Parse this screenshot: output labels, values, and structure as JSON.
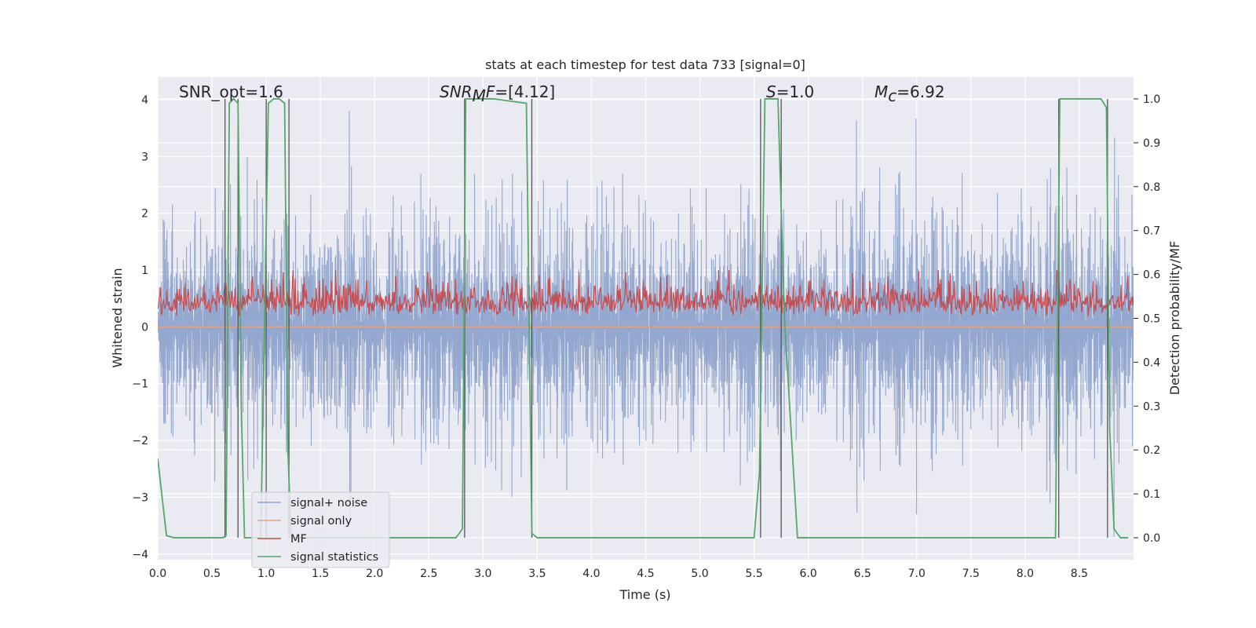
{
  "chart_data": {
    "type": "line",
    "title": "stats at each timestep for test data 733 [signal=0]",
    "xlabel": "Time (s)",
    "ylabel": "Whitened strain",
    "y2label": "Detection probability/MF",
    "xlim": [
      0,
      9
    ],
    "ylim": [
      -4.1,
      4.4
    ],
    "y2lim": [
      -0.05,
      1.05
    ],
    "xticks": [
      "0.0",
      "0.5",
      "1.0",
      "1.5",
      "2.0",
      "2.5",
      "3.0",
      "3.5",
      "4.0",
      "4.5",
      "5.0",
      "5.5",
      "6.0",
      "6.5",
      "7.0",
      "7.5",
      "8.0",
      "8.5"
    ],
    "yticks": [
      "4",
      "3",
      "2",
      "1",
      "0",
      "−1",
      "−2",
      "−3",
      "−4"
    ],
    "y2ticks": [
      "1.0",
      "0.9",
      "0.8",
      "0.7",
      "0.6",
      "0.5",
      "0.4",
      "0.3",
      "0.2",
      "0.1",
      "0.0"
    ],
    "grid": true,
    "legend_position": "lower-left",
    "annotations": {
      "snr_opt": "SNR_opt=1.6",
      "snr_mf_italic": "SNR",
      "snr_mf_sub": "M",
      "snr_mf_rest_italic": "F",
      "snr_mf_value": "=[4.12]",
      "s_italic": "S",
      "s_value": "=1.0",
      "mc_italic": "M",
      "mc_sub": "c",
      "mc_value": "=6.92"
    },
    "series": [
      {
        "name": "signal+ noise",
        "color": "#8fa4cc",
        "description_range": [
          -3.7,
          3.8
        ]
      },
      {
        "name": "signal only",
        "color": "#e8a37e",
        "values_constant": 0.0
      },
      {
        "name": "MF",
        "color": "#c44e52",
        "range": [
          0.0,
          1.0
        ]
      },
      {
        "name": "signal statistics",
        "color": "#55a868",
        "x": [
          0.0,
          0.08,
          0.15,
          0.3,
          0.5,
          0.6,
          0.63,
          0.66,
          0.7,
          0.74,
          0.77,
          0.8,
          0.95,
          1.02,
          1.07,
          1.12,
          1.17,
          1.2,
          1.23,
          1.5,
          2.0,
          2.5,
          2.75,
          2.81,
          2.84,
          2.9,
          3.1,
          3.4,
          3.45,
          3.5,
          3.58,
          4.0,
          4.5,
          5.0,
          5.4,
          5.5,
          5.55,
          5.6,
          5.65,
          5.72,
          5.78,
          5.9,
          6.0,
          6.5,
          7.0,
          7.5,
          8.0,
          8.28,
          8.32,
          8.38,
          8.45,
          8.6,
          8.7,
          8.75,
          8.78,
          8.82,
          8.88,
          8.95
        ],
        "y": [
          0.18,
          0.005,
          0.0,
          0.0,
          0.0,
          0.0,
          0.005,
          0.99,
          1.0,
          0.99,
          0.3,
          0.0,
          0.0,
          0.99,
          1.0,
          1.0,
          0.99,
          0.2,
          0.0,
          0.0,
          0.0,
          0.0,
          0.0,
          0.02,
          1.0,
          1.0,
          1.0,
          0.99,
          0.01,
          0.0,
          0.0,
          0.0,
          0.0,
          0.0,
          0.0,
          0.0,
          0.15,
          1.0,
          1.0,
          1.0,
          0.5,
          0.0,
          0.0,
          0.0,
          0.0,
          0.0,
          0.0,
          0.0,
          1.0,
          1.0,
          1.0,
          1.0,
          1.0,
          0.98,
          0.25,
          0.02,
          0.0,
          0.0
        ]
      }
    ],
    "vertical_lines_x": [
      0.62,
      0.74,
      1.0,
      1.21,
      2.83,
      3.45,
      5.56,
      5.75,
      8.31,
      8.76
    ],
    "legend": [
      "signal+ noise",
      "signal only",
      "MF",
      "signal statistics"
    ]
  }
}
